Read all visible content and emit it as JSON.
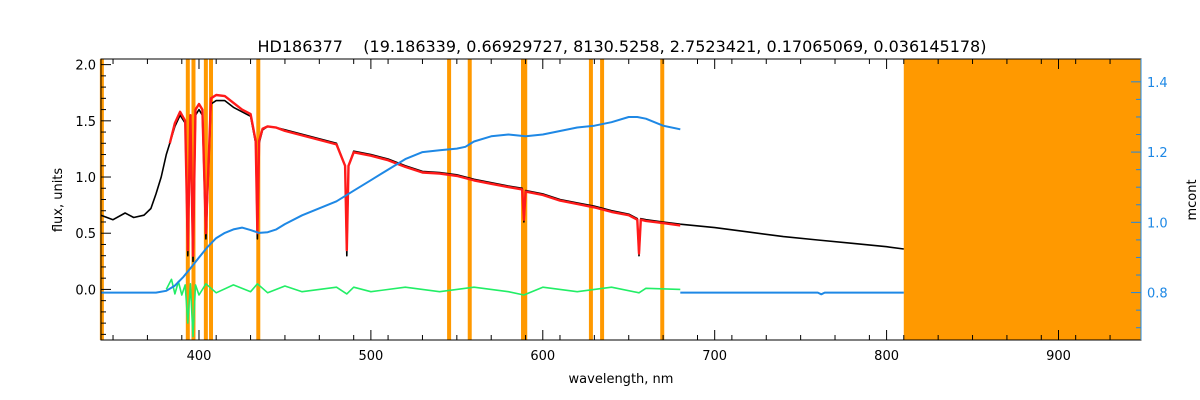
{
  "chart_data": {
    "type": "line",
    "title": "HD186377    (19.186339, 0.66929727, 8130.5258, 2.7523421, 0.17065069, 0.036145178)",
    "xlabel": "wavelength, nm",
    "ylabel": "flux, units",
    "ylabel_right": "mcont",
    "xlim": [
      343,
      948
    ],
    "ylim": [
      -0.45,
      2.05
    ],
    "ylim_right": [
      0.665,
      1.465
    ],
    "x_ticks": [
      400,
      500,
      600,
      700,
      800,
      900
    ],
    "y_ticks": [
      0.0,
      0.5,
      1.0,
      1.5,
      2.0
    ],
    "y_tick_labels": [
      "0.0",
      "0.5",
      "1.0",
      "1.5",
      "2.0"
    ],
    "y_right_ticks": [
      0.8,
      1.0,
      1.2,
      1.4
    ],
    "y_right_tick_labels": [
      "0.8",
      "1.0",
      "1.2",
      "1.4"
    ],
    "grid": false,
    "legend": "none",
    "colors": {
      "observed": "#000000",
      "model": "#ff1a1a",
      "residual": "#22ee66",
      "continuum": "#1e88e5",
      "mask": "#ff9900",
      "right_axis": "#1e88e5"
    },
    "masked_region": [
      810,
      948
    ],
    "mask_lines": [
      343.5,
      393.5,
      396.8,
      404.0,
      407.0,
      434.5,
      545.5,
      557.5,
      588.5,
      589.8,
      628.0,
      634.5,
      669.5
    ],
    "series": [
      {
        "key": "observed",
        "x": [
          343,
          350,
          357,
          362,
          368,
          372,
          375,
          378,
          381,
          383,
          386,
          389,
          392,
          393.5,
          395,
          396.5,
          398,
          400,
          402,
          404,
          407,
          410,
          415,
          420,
          425,
          430,
          433,
          434,
          435,
          437,
          440,
          445,
          450,
          460,
          470,
          480,
          485,
          486,
          487,
          490,
          500,
          510,
          520,
          530,
          540,
          550,
          560,
          570,
          580,
          588,
          589,
          590,
          600,
          610,
          620,
          630,
          640,
          650,
          655,
          656,
          657,
          660,
          670,
          680,
          700,
          720,
          740,
          760,
          780,
          800,
          810
        ],
        "y": [
          0.66,
          0.62,
          0.68,
          0.64,
          0.66,
          0.72,
          0.85,
          1.0,
          1.2,
          1.3,
          1.45,
          1.55,
          1.48,
          0.3,
          1.5,
          0.25,
          1.55,
          1.6,
          1.55,
          0.45,
          1.65,
          1.68,
          1.68,
          1.62,
          1.58,
          1.54,
          1.3,
          0.45,
          1.3,
          1.42,
          1.45,
          1.44,
          1.42,
          1.38,
          1.34,
          1.3,
          1.1,
          0.3,
          1.1,
          1.23,
          1.2,
          1.16,
          1.1,
          1.05,
          1.04,
          1.02,
          0.98,
          0.95,
          0.92,
          0.9,
          0.6,
          0.88,
          0.85,
          0.8,
          0.77,
          0.74,
          0.7,
          0.67,
          0.63,
          0.3,
          0.63,
          0.62,
          0.6,
          0.58,
          0.55,
          0.51,
          0.47,
          0.44,
          0.41,
          0.38,
          0.36
        ]
      },
      {
        "key": "model",
        "x": [
          383,
          386,
          389,
          392,
          393.5,
          395,
          396.5,
          398,
          400,
          402,
          404,
          407,
          410,
          415,
          420,
          425,
          430,
          433,
          434,
          435,
          437,
          440,
          445,
          450,
          460,
          470,
          480,
          485,
          486,
          487,
          490,
          500,
          510,
          520,
          530,
          540,
          550,
          560,
          570,
          580,
          588,
          589,
          590,
          600,
          610,
          620,
          630,
          640,
          650,
          655,
          656,
          657,
          660,
          670,
          680
        ],
        "y": [
          1.3,
          1.48,
          1.58,
          1.5,
          0.35,
          1.55,
          0.3,
          1.6,
          1.65,
          1.6,
          0.5,
          1.7,
          1.73,
          1.72,
          1.66,
          1.6,
          1.56,
          1.32,
          0.5,
          1.32,
          1.43,
          1.45,
          1.44,
          1.41,
          1.37,
          1.33,
          1.29,
          1.1,
          0.35,
          1.1,
          1.22,
          1.19,
          1.15,
          1.09,
          1.04,
          1.03,
          1.01,
          0.97,
          0.94,
          0.91,
          0.89,
          0.62,
          0.87,
          0.84,
          0.79,
          0.76,
          0.73,
          0.69,
          0.66,
          0.62,
          0.32,
          0.62,
          0.61,
          0.59,
          0.57
        ]
      },
      {
        "key": "continuum",
        "axis": "right",
        "x": [
          343,
          375,
          381,
          386,
          391,
          396,
          400,
          405,
          410,
          415,
          420,
          425,
          430,
          435,
          440,
          445,
          450,
          460,
          470,
          480,
          490,
          500,
          510,
          520,
          530,
          540,
          550,
          555,
          560,
          570,
          580,
          590,
          600,
          610,
          620,
          630,
          640,
          650,
          655,
          660,
          670,
          680
        ],
        "y": [
          0.8,
          0.8,
          0.805,
          0.82,
          0.845,
          0.875,
          0.9,
          0.93,
          0.955,
          0.97,
          0.98,
          0.985,
          0.978,
          0.97,
          0.972,
          0.98,
          0.995,
          1.02,
          1.04,
          1.06,
          1.09,
          1.12,
          1.15,
          1.18,
          1.2,
          1.205,
          1.21,
          1.215,
          1.23,
          1.245,
          1.25,
          1.245,
          1.25,
          1.26,
          1.27,
          1.275,
          1.285,
          1.3,
          1.3,
          1.295,
          1.275,
          1.265
        ]
      },
      {
        "key": "continuum_flat",
        "axis": "right",
        "x": [
          680,
          760,
          762,
          764,
          810
        ],
        "y": [
          0.8,
          0.8,
          0.795,
          0.8,
          0.8
        ]
      },
      {
        "key": "residual",
        "x": [
          381,
          384,
          386,
          388,
          390,
          392,
          393.5,
          395,
          396.5,
          398,
          400,
          404,
          410,
          420,
          430,
          434,
          440,
          450,
          460,
          480,
          486,
          490,
          500,
          520,
          540,
          560,
          580,
          589,
          600,
          620,
          640,
          656,
          660,
          680
        ],
        "y": [
          0.0,
          0.09,
          -0.04,
          0.07,
          -0.05,
          0.04,
          -0.3,
          0.05,
          -0.42,
          0.04,
          -0.05,
          0.05,
          -0.03,
          0.04,
          -0.02,
          0.05,
          -0.03,
          0.03,
          -0.02,
          0.02,
          -0.04,
          0.02,
          -0.02,
          0.02,
          -0.02,
          0.02,
          -0.02,
          -0.05,
          0.02,
          -0.02,
          0.02,
          -0.03,
          0.01,
          0.0
        ]
      }
    ]
  }
}
